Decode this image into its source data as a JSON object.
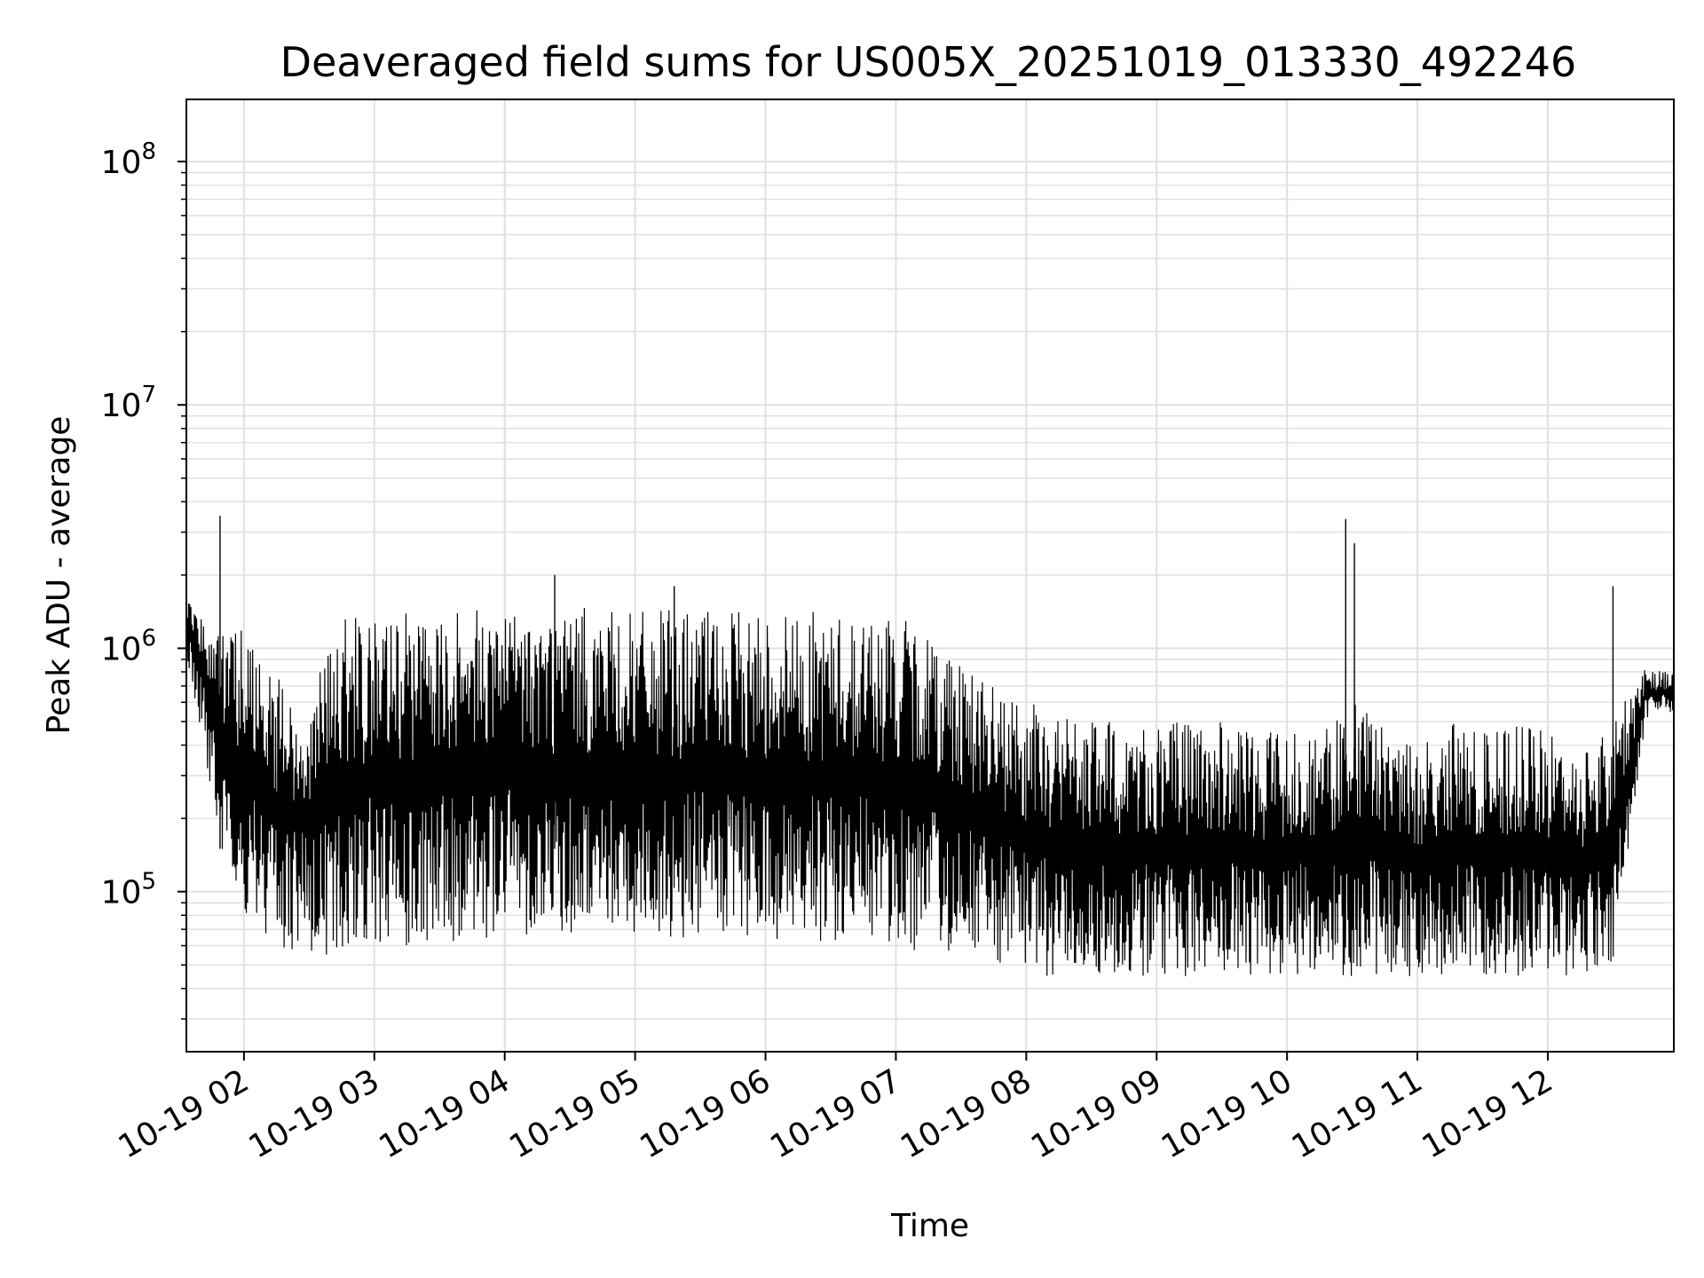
{
  "chart_data": {
    "type": "line",
    "title": "Deaveraged field sums for US005X_20251019_013330_492246",
    "xlabel": "Time",
    "ylabel": "Peak ADU - average",
    "yscale": "log",
    "ylim": [
      22000,
      180000000
    ],
    "xlim": [
      "2025-10-19 01:33:30",
      "2025-10-19 12:58:00"
    ],
    "grid": true,
    "line_color": "#000000",
    "grid_color": "#e0e0e0",
    "x_ticks": [
      {
        "value": "2025-10-19 02:00",
        "label": "10-19 02"
      },
      {
        "value": "2025-10-19 03:00",
        "label": "10-19 03"
      },
      {
        "value": "2025-10-19 04:00",
        "label": "10-19 04"
      },
      {
        "value": "2025-10-19 05:00",
        "label": "10-19 05"
      },
      {
        "value": "2025-10-19 06:00",
        "label": "10-19 06"
      },
      {
        "value": "2025-10-19 07:00",
        "label": "10-19 07"
      },
      {
        "value": "2025-10-19 08:00",
        "label": "10-19 08"
      },
      {
        "value": "2025-10-19 09:00",
        "label": "10-19 09"
      },
      {
        "value": "2025-10-19 10:00",
        "label": "10-19 10"
      },
      {
        "value": "2025-10-19 11:00",
        "label": "10-19 11"
      },
      {
        "value": "2025-10-19 12:00",
        "label": "10-19 12"
      }
    ],
    "y_ticks": [
      {
        "value": 100000,
        "base": "10",
        "exp": "5"
      },
      {
        "value": 1000000,
        "base": "10",
        "exp": "6"
      },
      {
        "value": 10000000,
        "base": "10",
        "exp": "7"
      },
      {
        "value": 100000000,
        "base": "10",
        "exp": "8"
      }
    ],
    "series": [
      {
        "envelope": true,
        "x": [
          "2025-10-19 01:34",
          "2025-10-19 01:40",
          "2025-10-19 01:50",
          "2025-10-19 02:00",
          "2025-10-19 02:15",
          "2025-10-19 02:30",
          "2025-10-19 02:45",
          "2025-10-19 03:00",
          "2025-10-19 03:15",
          "2025-10-19 03:30",
          "2025-10-19 03:45",
          "2025-10-19 04:00",
          "2025-10-19 04:15",
          "2025-10-19 04:30",
          "2025-10-19 04:45",
          "2025-10-19 05:00",
          "2025-10-19 05:15",
          "2025-10-19 05:30",
          "2025-10-19 05:45",
          "2025-10-19 06:00",
          "2025-10-19 06:15",
          "2025-10-19 06:30",
          "2025-10-19 06:45",
          "2025-10-19 07:00",
          "2025-10-19 07:15",
          "2025-10-19 07:30",
          "2025-10-19 07:45",
          "2025-10-19 08:00",
          "2025-10-19 08:15",
          "2025-10-19 08:30",
          "2025-10-19 08:45",
          "2025-10-19 09:00",
          "2025-10-19 09:15",
          "2025-10-19 09:30",
          "2025-10-19 09:45",
          "2025-10-19 10:00",
          "2025-10-19 10:15",
          "2025-10-19 10:30",
          "2025-10-19 10:45",
          "2025-10-19 11:00",
          "2025-10-19 11:15",
          "2025-10-19 11:30",
          "2025-10-19 11:45",
          "2025-10-19 12:00",
          "2025-10-19 12:15",
          "2025-10-19 12:30",
          "2025-10-19 12:45",
          "2025-10-19 12:58"
        ],
        "high": [
          1600000,
          1500000,
          1300000,
          1200000,
          800000,
          700000,
          1400000,
          1400000,
          1450000,
          1450000,
          1450000,
          1450000,
          1450000,
          1500000,
          1450000,
          1400000,
          1450000,
          1450000,
          1400000,
          1450000,
          1450000,
          1400000,
          1400000,
          1350000,
          1200000,
          1000000,
          700000,
          600000,
          550000,
          500000,
          500000,
          500000,
          500000,
          500000,
          450000,
          500000,
          450000,
          600000,
          500000,
          400000,
          500000,
          450000,
          500000,
          450000,
          400000,
          500000,
          850000,
          800000
        ],
        "low": [
          900000,
          450000,
          150000,
          80000,
          60000,
          55000,
          55000,
          60000,
          60000,
          60000,
          60000,
          70000,
          65000,
          65000,
          70000,
          65000,
          60000,
          65000,
          60000,
          60000,
          60000,
          60000,
          60000,
          60000,
          55000,
          55000,
          50000,
          45000,
          45000,
          45000,
          45000,
          45000,
          45000,
          45000,
          45000,
          45000,
          45000,
          45000,
          45000,
          45000,
          45000,
          45000,
          45000,
          45000,
          45000,
          50000,
          500000,
          550000
        ]
      }
    ],
    "spikes": [
      {
        "x": "2025-10-19 01:49",
        "y": 3500000
      },
      {
        "x": "2025-10-19 04:23",
        "y": 2000000
      },
      {
        "x": "2025-10-19 05:18",
        "y": 1800000
      },
      {
        "x": "2025-10-19 10:27",
        "y": 3400000
      },
      {
        "x": "2025-10-19 10:31",
        "y": 2700000
      },
      {
        "x": "2025-10-19 12:30",
        "y": 1800000
      }
    ]
  }
}
